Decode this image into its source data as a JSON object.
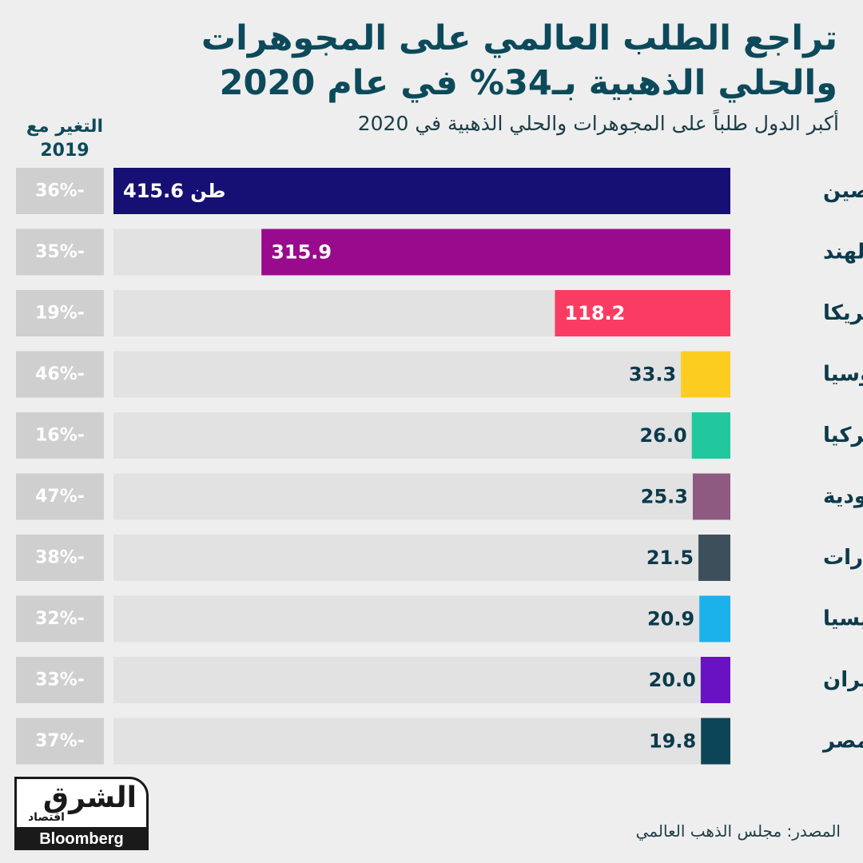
{
  "header": {
    "title": "تراجع الطلب العالمي على المجوهرات والحلي الذهبية بـ34% في عام 2020",
    "subtitle": "أكبر الدول طلباً على المجوهرات والحلي الذهبية في 2020",
    "change_header": "التغير مع 2019"
  },
  "chart_data": {
    "type": "bar",
    "orientation": "horizontal",
    "unit_label": "طن",
    "categories": [
      "الصين",
      "الهند",
      "أمريكا",
      "روسيا",
      "تركيا",
      "السعودية",
      "الإمارات",
      "إندونيسيا",
      "إيران",
      "مصر"
    ],
    "values": [
      415.6,
      315.9,
      118.2,
      33.3,
      26.0,
      25.3,
      21.5,
      20.9,
      20.0,
      19.8
    ],
    "value_labels": [
      "415.6 طن",
      "315.9",
      "118.2",
      "33.3",
      "26.0",
      "25.3",
      "21.5",
      "20.9",
      "20.0",
      "19.8"
    ],
    "change_vs_2019": [
      "-36%",
      "-35%",
      "-19%",
      "-46%",
      "-16%",
      "-47%",
      "-38%",
      "-32%",
      "-33%",
      "-37%"
    ],
    "colors": [
      "#160f74",
      "#990a8c",
      "#fa3c63",
      "#fccd20",
      "#21c89e",
      "#8e5a82",
      "#3e4f5c",
      "#1bb1ea",
      "#6812c4",
      "#0d4558"
    ],
    "grid": false,
    "legend": "none"
  },
  "footer": {
    "source": "المصدر: مجلس الذهب العالمي",
    "logo_main": "الشرق",
    "logo_sub": "اقتصاد",
    "logo_partner": "Bloomberg"
  }
}
